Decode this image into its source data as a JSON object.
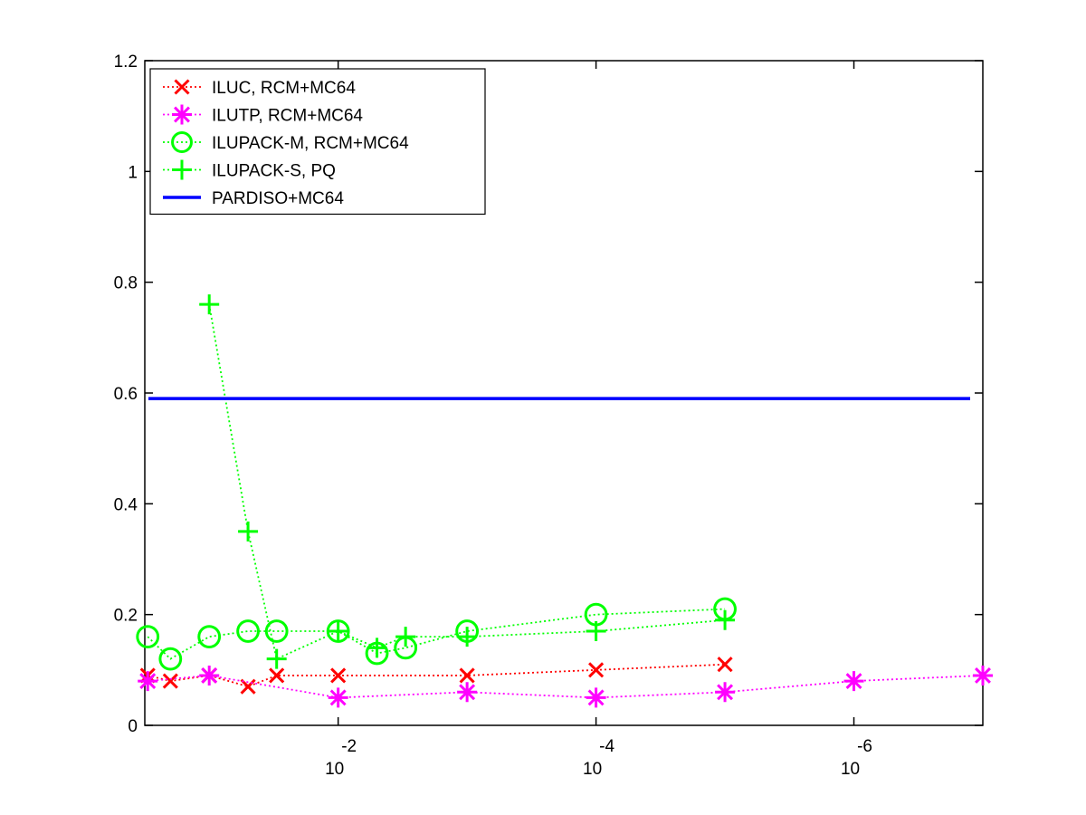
{
  "chart_data": {
    "type": "line",
    "title": "",
    "xlabel": "",
    "ylabel": "",
    "x_scale": "log-reversed",
    "xlim": [
      0.316,
      1e-07
    ],
    "ylim": [
      0,
      1.2
    ],
    "grid": false,
    "legend_position": "top-left",
    "x_ticks": [
      {
        "base": "10",
        "exponent": "-2",
        "value": 0.01
      },
      {
        "base": "10",
        "exponent": "-4",
        "value": 0.0001
      },
      {
        "base": "10",
        "exponent": "-6",
        "value": 1e-06
      }
    ],
    "y_ticks": [
      {
        "value": 0,
        "label": "0"
      },
      {
        "value": 0.2,
        "label": "0.2"
      },
      {
        "value": 0.4,
        "label": "0.4"
      },
      {
        "value": 0.6,
        "label": "0.6"
      },
      {
        "value": 0.8,
        "label": "0.8"
      },
      {
        "value": 1,
        "label": "1"
      },
      {
        "value": 1.2,
        "label": "1.2"
      }
    ],
    "series": [
      {
        "name": "ILUC, RCM+MC64",
        "color": "#ff0000",
        "marker": "x",
        "line_style": "dotted",
        "x": [
          0.3,
          0.2,
          0.1,
          0.05,
          0.03,
          0.01,
          0.001,
          0.0001,
          1e-05
        ],
        "y": [
          0.09,
          0.08,
          0.09,
          0.07,
          0.09,
          0.09,
          0.09,
          0.1,
          0.11
        ]
      },
      {
        "name": "ILUTP, RCM+MC64",
        "color": "#ff00ff",
        "marker": "asterisk",
        "line_style": "dotted",
        "x": [
          0.3,
          0.1,
          0.01,
          0.001,
          0.0001,
          1e-05,
          1e-06,
          1e-07
        ],
        "y": [
          0.08,
          0.09,
          0.05,
          0.06,
          0.05,
          0.06,
          0.08,
          0.09
        ]
      },
      {
        "name": "ILUPACK-M, RCM+MC64",
        "color": "#00ff00",
        "marker": "circle",
        "line_style": "dotted",
        "x": [
          0.3,
          0.2,
          0.1,
          0.05,
          0.03,
          0.01,
          0.005,
          0.003,
          0.001,
          0.0001,
          1e-05
        ],
        "y": [
          0.16,
          0.12,
          0.16,
          0.17,
          0.17,
          0.17,
          0.13,
          0.14,
          0.17,
          0.2,
          0.21
        ]
      },
      {
        "name": "ILUPACK-S, PQ",
        "color": "#00ff00",
        "marker": "plus",
        "line_style": "dotted",
        "x": [
          0.1,
          0.05,
          0.03,
          0.01,
          0.005,
          0.003,
          0.001,
          0.0001,
          1e-05
        ],
        "y": [
          0.76,
          0.35,
          0.12,
          0.17,
          0.14,
          0.16,
          0.16,
          0.17,
          0.19
        ]
      },
      {
        "name": "PARDISO+MC64",
        "color": "#0000ff",
        "marker": "none",
        "line_style": "solid",
        "x": [
          0.3,
          1e-07
        ],
        "y": [
          0.59,
          0.59
        ]
      }
    ]
  }
}
